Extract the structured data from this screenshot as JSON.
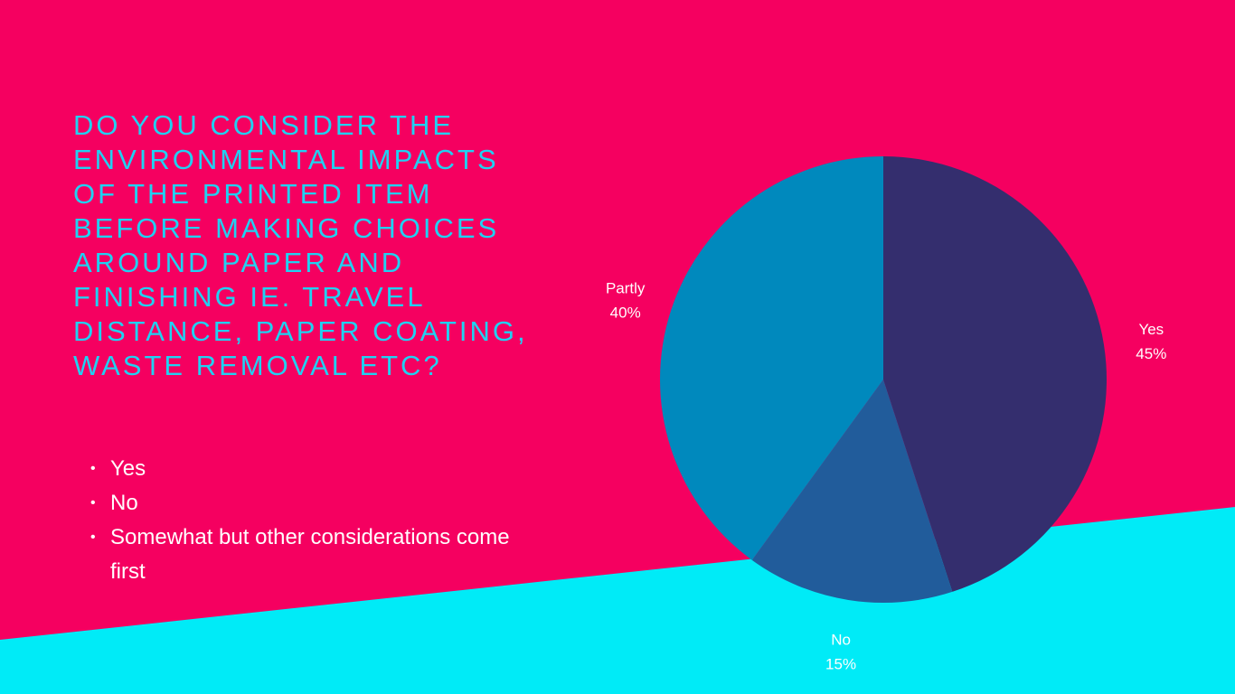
{
  "slide": {
    "title": "DO YOU CONSIDER THE ENVIRONMENTAL IMPACTS OF THE PRINTED ITEM BEFORE MAKING CHOICES AROUND PAPER AND FINISHING IE. TRAVEL DISTANCE, PAPER COATING, WASTE REMOVAL ETC?",
    "bullets": [
      "Yes",
      "No",
      "Somewhat but other considerations come first"
    ],
    "colors": {
      "background_top": "#f50060",
      "background_bottom": "#00ebf7",
      "title": "#1fd2f2"
    }
  },
  "chart_data": {
    "type": "pie",
    "title": "",
    "start_angle_deg": 0,
    "direction": "clockwise",
    "slices": [
      {
        "label": "Yes",
        "value": 45,
        "value_label": "45%",
        "color": "#342e6e"
      },
      {
        "label": "No",
        "value": 15,
        "value_label": "15%",
        "color": "#215c9b"
      },
      {
        "label": "Partly",
        "value": 40,
        "value_label": "40%",
        "color": "#0089bd"
      }
    ],
    "legend": "none"
  }
}
